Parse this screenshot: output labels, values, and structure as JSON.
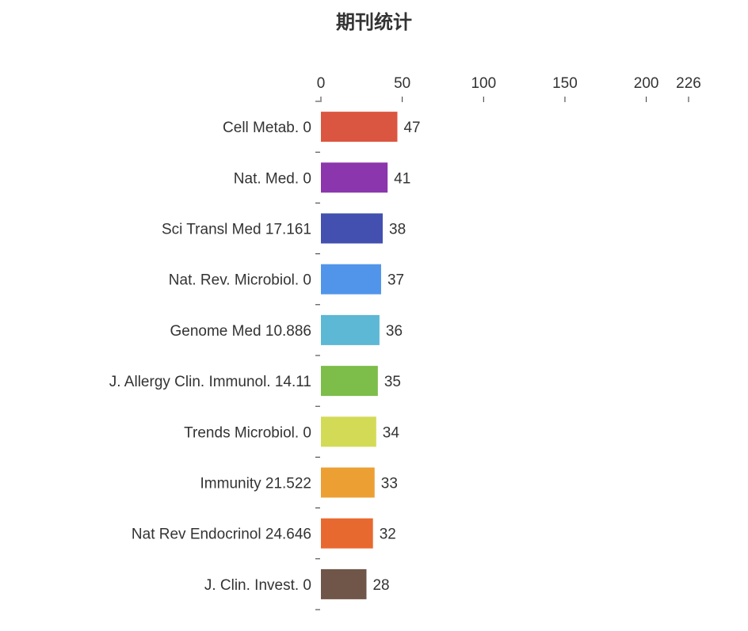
{
  "chart_data": {
    "type": "bar",
    "orientation": "horizontal",
    "title": "期刊统计",
    "xlim": [
      0,
      226
    ],
    "xticks": [
      0,
      50,
      100,
      150,
      200,
      226
    ],
    "axis_position": "top",
    "grid": false,
    "categories": [
      "Cell Metab. 0",
      "Nat. Med. 0",
      "Sci Transl Med 17.161",
      "Nat. Rev. Microbiol. 0",
      "Genome Med 10.886",
      "J. Allergy Clin. Immunol. 14.11",
      "Trends Microbiol. 0",
      "Immunity 21.522",
      "Nat Rev Endocrinol 24.646",
      "J. Clin. Invest. 0"
    ],
    "values": [
      47,
      41,
      38,
      37,
      36,
      35,
      34,
      33,
      32,
      28
    ],
    "colors": [
      "#db5640",
      "#8b36ad",
      "#4350b0",
      "#5195ea",
      "#5cb8d4",
      "#7dbd4a",
      "#d3da55",
      "#ec9f32",
      "#e8692f",
      "#6f5649"
    ]
  }
}
